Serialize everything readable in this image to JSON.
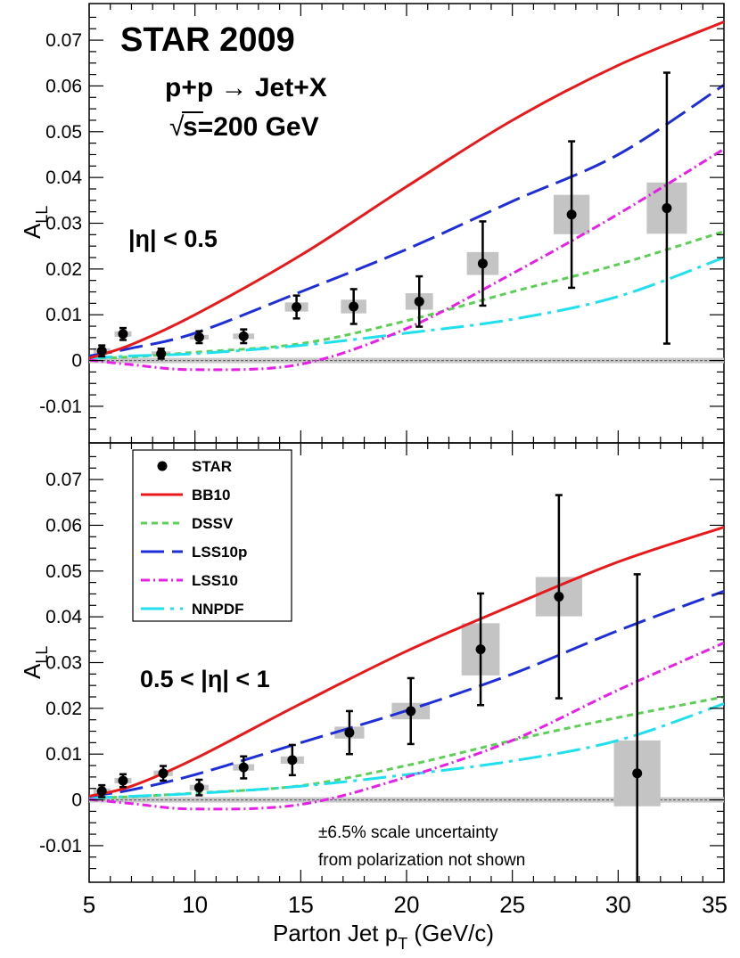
{
  "chart_data": [
    {
      "type": "scatter",
      "panel": "top",
      "title": "STAR 2009",
      "process": "p+p → Jet+X",
      "energy_label": "s=200 GeV",
      "energy_root": "√",
      "region_label": "|η| < 0.5",
      "ylabel": "A",
      "ylabel_sub": "LL",
      "xlim": [
        5,
        35
      ],
      "ylim": [
        -0.018,
        0.078
      ],
      "yticks": [
        "0.07",
        "0.06",
        "0.05",
        "0.04",
        "0.03",
        "0.02",
        "0.01",
        "0",
        "-0.01"
      ],
      "ytick_values": [
        0.07,
        0.06,
        0.05,
        0.04,
        0.03,
        0.02,
        0.01,
        0,
        -0.01
      ],
      "points": [
        {
          "x": 5.6,
          "y": 0.0021,
          "err": 0.0012,
          "sys": 0.0006,
          "sys_w": 0.4
        },
        {
          "x": 6.6,
          "y": 0.0058,
          "err": 0.0013,
          "sys": 0.0006,
          "sys_w": 0.4
        },
        {
          "x": 8.4,
          "y": 0.0015,
          "err": 0.0011,
          "sys": 0.0005,
          "sys_w": 0.45
        },
        {
          "x": 10.2,
          "y": 0.0051,
          "err": 0.0013,
          "sys": 0.0005,
          "sys_w": 0.45
        },
        {
          "x": 12.3,
          "y": 0.0053,
          "err": 0.0015,
          "sys": 0.0006,
          "sys_w": 0.5
        },
        {
          "x": 14.8,
          "y": 0.0117,
          "err": 0.0025,
          "sys": 0.001,
          "sys_w": 0.55
        },
        {
          "x": 17.5,
          "y": 0.0118,
          "err": 0.0038,
          "sys": 0.0015,
          "sys_w": 0.6
        },
        {
          "x": 20.6,
          "y": 0.0129,
          "err": 0.0055,
          "sys": 0.0018,
          "sys_w": 0.65
        },
        {
          "x": 23.6,
          "y": 0.0212,
          "err": 0.0092,
          "sys": 0.0025,
          "sys_w": 0.75
        },
        {
          "x": 27.8,
          "y": 0.0319,
          "err": 0.016,
          "sys": 0.0043,
          "sys_w": 0.85
        },
        {
          "x": 32.3,
          "y": 0.0333,
          "err": 0.0296,
          "sys": 0.0056,
          "sys_w": 0.95
        }
      ],
      "curves": {
        "x": [
          5,
          7,
          10,
          15,
          20,
          25,
          30,
          35
        ],
        "BB10": [
          0.0005,
          0.0035,
          0.01,
          0.023,
          0.038,
          0.0525,
          0.0645,
          0.074
        ],
        "DSSV": [
          0.0005,
          0.0008,
          0.0018,
          0.0037,
          0.0087,
          0.015,
          0.021,
          0.0282
        ],
        "LSS10p": [
          0.001,
          0.0027,
          0.006,
          0.015,
          0.0243,
          0.0348,
          0.045,
          0.0602
        ],
        "LSS10": [
          0.0001,
          -0.0009,
          -0.002,
          -0.0008,
          0.007,
          0.019,
          0.032,
          0.0462
        ],
        "NNPDF": [
          0.0005,
          0.001,
          0.0015,
          0.0033,
          0.006,
          0.009,
          0.014,
          0.0225
        ]
      }
    },
    {
      "type": "scatter",
      "panel": "bottom",
      "region_label": "0.5 < |η| < 1",
      "ylabel": "A",
      "ylabel_sub": "LL",
      "xlabel": "Parton Jet p",
      "xlabel_sub": "T",
      "xlabel_unit": " (GeV/c)",
      "xlim": [
        5,
        35
      ],
      "ylim": [
        -0.018,
        0.078
      ],
      "xticks": [
        "5",
        "10",
        "15",
        "20",
        "25",
        "30",
        "35"
      ],
      "xtick_values": [
        5,
        10,
        15,
        20,
        25,
        30,
        35
      ],
      "yticks": [
        "0.07",
        "0.06",
        "0.05",
        "0.04",
        "0.03",
        "0.02",
        "0.01",
        "0",
        "-0.01"
      ],
      "ytick_values": [
        0.07,
        0.06,
        0.05,
        0.04,
        0.03,
        0.02,
        0.01,
        0,
        -0.01
      ],
      "points": [
        {
          "x": 5.6,
          "y": 0.0019,
          "err": 0.0013,
          "sys": 0.0006,
          "sys_w": 0.4
        },
        {
          "x": 6.6,
          "y": 0.0042,
          "err": 0.0014,
          "sys": 0.0006,
          "sys_w": 0.4
        },
        {
          "x": 8.5,
          "y": 0.0058,
          "err": 0.0016,
          "sys": 0.0006,
          "sys_w": 0.45
        },
        {
          "x": 10.2,
          "y": 0.0027,
          "err": 0.0017,
          "sys": 0.0006,
          "sys_w": 0.45
        },
        {
          "x": 12.3,
          "y": 0.0071,
          "err": 0.0024,
          "sys": 0.0007,
          "sys_w": 0.5
        },
        {
          "x": 14.6,
          "y": 0.0087,
          "err": 0.0033,
          "sys": 0.0008,
          "sys_w": 0.55
        },
        {
          "x": 17.3,
          "y": 0.0147,
          "err": 0.0047,
          "sys": 0.0013,
          "sys_w": 0.7
        },
        {
          "x": 20.2,
          "y": 0.0194,
          "err": 0.0072,
          "sys": 0.0018,
          "sys_w": 0.9
        },
        {
          "x": 23.5,
          "y": 0.0329,
          "err": 0.0122,
          "sys": 0.0057,
          "sys_w": 0.9
        },
        {
          "x": 27.2,
          "y": 0.0444,
          "err": 0.0222,
          "sys": 0.0043,
          "sys_w": 1.1
        },
        {
          "x": 30.9,
          "y": 0.0058,
          "err": 0.0435,
          "sys": 0.0072,
          "sys_w": 1.1
        }
      ],
      "curves": {
        "x": [
          5,
          7,
          10,
          15,
          20,
          25,
          30,
          35
        ],
        "BB10": [
          0.0008,
          0.003,
          0.009,
          0.021,
          0.0325,
          0.0425,
          0.052,
          0.0596
        ],
        "DSSV": [
          0.0004,
          0.0007,
          0.0015,
          0.0031,
          0.0075,
          0.013,
          0.018,
          0.0225
        ],
        "LSS10p": [
          0.0008,
          0.0022,
          0.0055,
          0.0125,
          0.0195,
          0.0275,
          0.037,
          0.0456
        ],
        "LSS10": [
          0.0001,
          -0.0008,
          -0.002,
          -0.001,
          0.005,
          0.013,
          0.024,
          0.0343
        ],
        "NNPDF": [
          0.0004,
          0.0008,
          0.0014,
          0.003,
          0.0055,
          0.0085,
          0.013,
          0.021
        ]
      }
    }
  ],
  "legend": [
    {
      "key": "STAR",
      "label": "STAR",
      "style": "marker"
    },
    {
      "key": "BB10",
      "label": "BB10",
      "style": "solid"
    },
    {
      "key": "DSSV",
      "label": "DSSV",
      "style": "dash"
    },
    {
      "key": "LSS10p",
      "label": "LSS10p",
      "style": "longdash"
    },
    {
      "key": "LSS10",
      "label": "LSS10",
      "style": "dashdot"
    },
    {
      "key": "NNPDF",
      "label": "NNPDF",
      "style": "longdashdot"
    }
  ],
  "note_lines": [
    "±6.5% scale uncertainty",
    "from polarization not shown"
  ],
  "colors": {
    "BB10": "#e8191b",
    "DSSV": "#5bd055",
    "LSS10p": "#1e2ed8",
    "LSS10": "#e620e6",
    "NNPDF": "#20e0ee",
    "sys_box": "#c4c4c4",
    "zero_band": "#c8c8c8",
    "axis": "#000000"
  }
}
